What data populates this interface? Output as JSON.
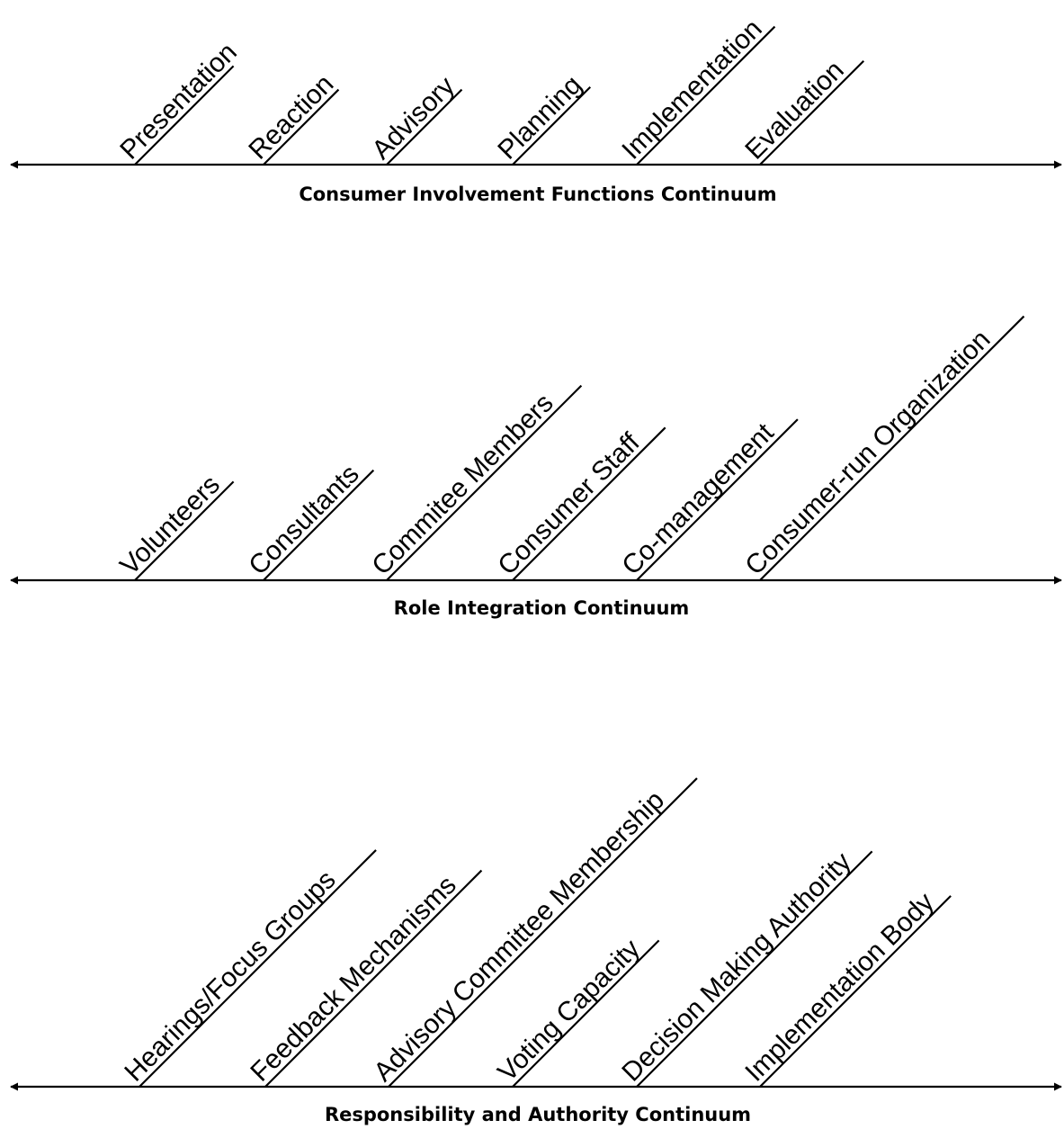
{
  "continua": [
    {
      "title": "Consumer Involvement Functions Continuum",
      "items": [
        "Presentation",
        "Reaction",
        "Advisory",
        "Planning",
        "Implementation",
        "Evaluation"
      ]
    },
    {
      "title": "Role Integration Continuum",
      "items": [
        "Volunteers",
        "Consultants",
        "Commitee Members",
        "Consumer Staff",
        "Co-management",
        "Consumer-run Organization"
      ]
    },
    {
      "title": "Responsibility and Authority Continuum",
      "items": [
        "Hearings/Focus Groups",
        "Feedback Mechanisms",
        "Advisory Committee Membership",
        "Voting Capacity",
        "Decision Making Authority",
        "Implementation Body"
      ]
    }
  ]
}
